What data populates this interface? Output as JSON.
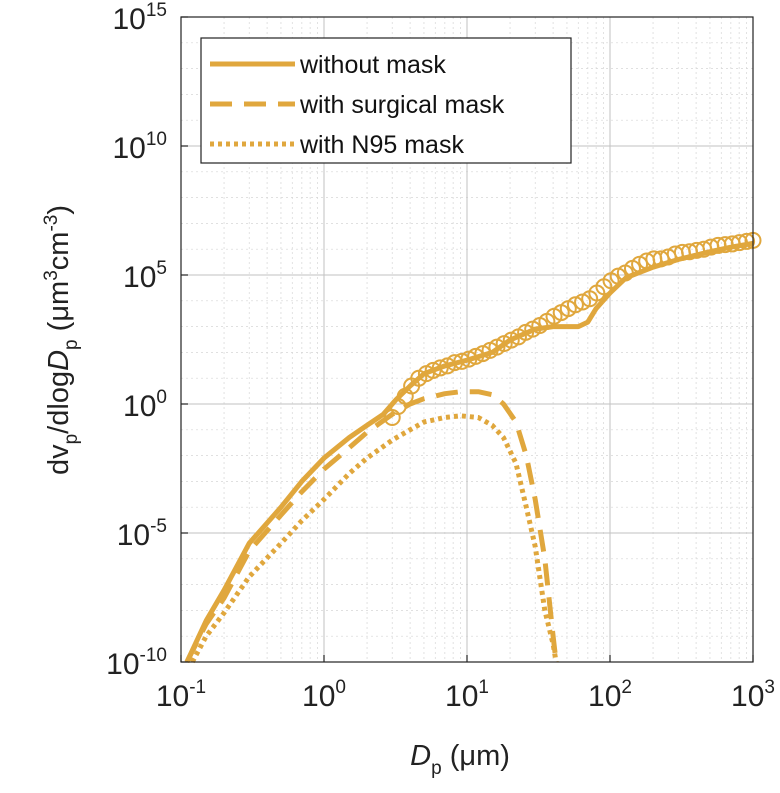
{
  "chart_data": {
    "type": "line",
    "xscale": "log",
    "yscale": "log",
    "xlim": [
      0.1,
      1000
    ],
    "ylim": [
      1e-10,
      1000000000000000.0
    ],
    "x_ticks": [
      {
        "base": "10",
        "exp": "-1",
        "value": 0.1
      },
      {
        "base": "10",
        "exp": "0",
        "value": 1
      },
      {
        "base": "10",
        "exp": "1",
        "value": 10
      },
      {
        "base": "10",
        "exp": "2",
        "value": 100
      },
      {
        "base": "10",
        "exp": "3",
        "value": 1000
      }
    ],
    "y_ticks": [
      {
        "base": "10",
        "exp": "-10",
        "value": 1e-10
      },
      {
        "base": "10",
        "exp": "-5",
        "value": 1e-05
      },
      {
        "base": "10",
        "exp": "0",
        "value": 1
      },
      {
        "base": "10",
        "exp": "5",
        "value": 100000.0
      },
      {
        "base": "10",
        "exp": "10",
        "value": 10000000000.0
      },
      {
        "base": "10",
        "exp": "15",
        "value": 1000000000000000.0
      }
    ],
    "xlabel": {
      "main": "D",
      "sub": "p",
      "unit": " (μm)"
    },
    "ylabel": {
      "p1": "dv",
      "sub1": "p",
      "p2": "/dlog",
      "p3": "D",
      "sub2": "p",
      "p4": " (μm",
      "sup1": "3",
      "p5": "cm",
      "sup2": "-3",
      "p6": ")"
    },
    "grid": true,
    "legend_position": "top-left",
    "color": "#E0A73D",
    "series": [
      {
        "name": "without mask",
        "style": "solid",
        "x": [
          0.11,
          0.15,
          0.2,
          0.3,
          0.5,
          0.7,
          1.0,
          1.5,
          2.0,
          2.6,
          3.2,
          4.0,
          5.0,
          7.0,
          10,
          15,
          20,
          30,
          40,
          50,
          60,
          70,
          80,
          100,
          130,
          200,
          300,
          500,
          700,
          1000
        ],
        "y": [
          1e-10,
          4e-09,
          6e-08,
          4e-06,
          0.0001,
          0.001,
          0.008,
          0.05,
          0.15,
          0.4,
          1.5,
          5,
          15,
          30,
          50,
          100,
          300,
          800,
          1000,
          1000,
          1000,
          1500,
          5000,
          20000,
          80000,
          200000,
          400000,
          800000,
          1200000,
          1700000
        ]
      },
      {
        "name": "with surgical mask",
        "style": "dashed",
        "x": [
          0.11,
          0.15,
          0.2,
          0.3,
          0.5,
          0.7,
          1.0,
          1.5,
          2.0,
          3.0,
          4.0,
          5.0,
          7.0,
          9.0,
          12,
          15,
          18,
          22,
          26,
          30,
          35,
          40,
          42
        ],
        "y": [
          1e-10,
          3e-09,
          3e-08,
          2e-06,
          5e-05,
          0.0004,
          0.003,
          0.02,
          0.08,
          0.4,
          1,
          1.6,
          2.5,
          3,
          3,
          2.3,
          1,
          0.2,
          0.01,
          0.0002,
          1e-06,
          1e-09,
          1e-10
        ]
      },
      {
        "name": "with N95 mask",
        "style": "dotted",
        "x": [
          0.12,
          0.15,
          0.2,
          0.3,
          0.5,
          0.7,
          1.0,
          1.5,
          2.0,
          3.0,
          4.0,
          5.0,
          7.0,
          9.0,
          12,
          15,
          18,
          22,
          26,
          30,
          35,
          40,
          42
        ],
        "y": [
          1e-10,
          1e-09,
          8e-09,
          2e-07,
          4e-06,
          3e-05,
          0.0002,
          0.002,
          0.008,
          0.04,
          0.1,
          0.2,
          0.3,
          0.35,
          0.3,
          0.15,
          0.05,
          0.005,
          0.0001,
          3e-06,
          1e-08,
          5e-10,
          1e-10
        ]
      }
    ],
    "markers": {
      "style": "open-circle",
      "x": [
        3.0,
        3.3,
        3.7,
        4.1,
        4.6,
        5.2,
        5.8,
        6.5,
        7.3,
        8.2,
        9.2,
        10.3,
        11.5,
        12.9,
        14.5,
        16.2,
        18.2,
        20.4,
        22.9,
        25.7,
        28.8,
        32.3,
        36.2,
        40.6,
        45.6,
        51.1,
        57.3,
        64.3,
        72.1,
        80.9,
        90.7,
        101.7,
        114.1,
        128.0,
        143.6,
        161.0,
        180.6,
        202.6,
        227.3,
        254.9,
        286.0,
        320.8,
        359.8,
        403.6,
        452.7,
        507.9,
        569.8,
        639.1,
        716.9,
        804.2,
        902.1,
        1000
      ],
      "y": [
        0.3,
        0.8,
        2,
        5,
        10,
        15,
        20,
        25,
        30,
        40,
        45,
        55,
        70,
        90,
        120,
        160,
        220,
        300,
        400,
        600,
        800,
        1100,
        1600,
        2500,
        3500,
        5000,
        7000,
        9000,
        12000,
        20000,
        35000,
        60000,
        90000,
        120000,
        180000,
        260000,
        350000,
        420000,
        420000,
        500000,
        650000,
        750000,
        800000,
        900000,
        1000000,
        1200000,
        1400000,
        1500000,
        1600000,
        1800000,
        2000000,
        2200000
      ]
    }
  }
}
